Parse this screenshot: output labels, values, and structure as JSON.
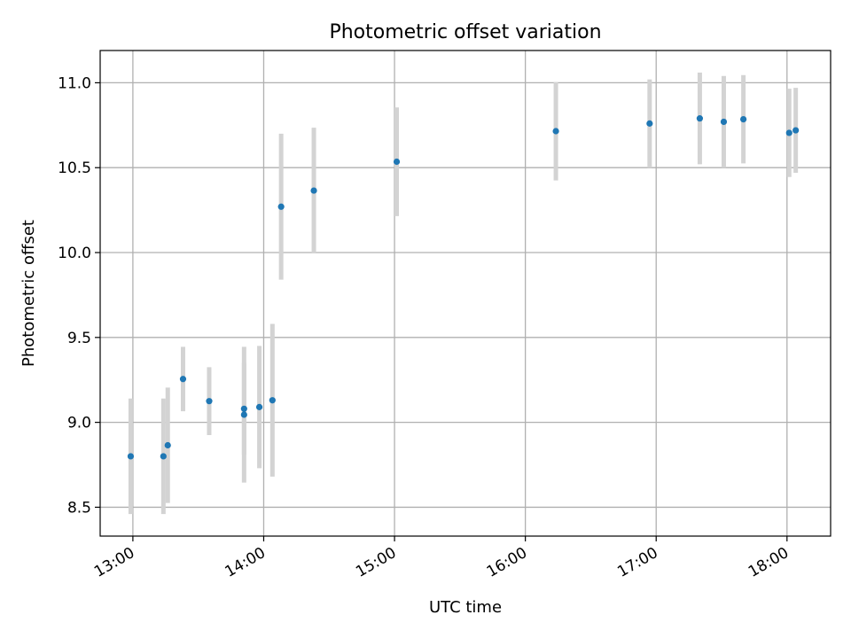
{
  "chart_data": {
    "type": "scatter",
    "title": "Photometric offset variation",
    "xlabel": "UTC time",
    "ylabel": "Photometric offset",
    "x_unit": "UTC time (HH:MM)",
    "xlim": [
      "12:45",
      "18:20"
    ],
    "ylim": [
      8.33,
      11.19
    ],
    "x_ticks": [
      "13:00",
      "14:00",
      "15:00",
      "16:00",
      "17:00",
      "18:00"
    ],
    "y_ticks": [
      8.5,
      9.0,
      9.5,
      10.0,
      10.5,
      11.0
    ],
    "y_tick_labels": [
      "8.5",
      "9.0",
      "9.5",
      "10.0",
      "10.5",
      "11.0"
    ],
    "grid": true,
    "legend": null,
    "colors": {
      "marker": "#1f77b4",
      "errorbar": "#d3d3d3",
      "grid": "#b0b0b0"
    },
    "points": [
      {
        "x": "12:59",
        "y": 8.8,
        "err": 0.34
      },
      {
        "x": "13:14",
        "y": 8.8,
        "err": 0.34
      },
      {
        "x": "13:16",
        "y": 8.865,
        "err": 0.34
      },
      {
        "x": "13:23",
        "y": 9.255,
        "err": 0.19
      },
      {
        "x": "13:35",
        "y": 9.125,
        "err": 0.2
      },
      {
        "x": "13:51",
        "y": 9.08,
        "err": 0.27
      },
      {
        "x": "13:51",
        "y": 9.045,
        "err": 0.4
      },
      {
        "x": "13:58",
        "y": 9.09,
        "err": 0.36
      },
      {
        "x": "14:04",
        "y": 9.13,
        "err": 0.45
      },
      {
        "x": "14:08",
        "y": 10.27,
        "err": 0.43
      },
      {
        "x": "14:23",
        "y": 10.365,
        "err": 0.37
      },
      {
        "x": "15:01",
        "y": 10.535,
        "err": 0.32
      },
      {
        "x": "16:14",
        "y": 10.715,
        "err": 0.29
      },
      {
        "x": "16:57",
        "y": 10.76,
        "err": 0.26
      },
      {
        "x": "17:20",
        "y": 10.79,
        "err": 0.27
      },
      {
        "x": "17:31",
        "y": 10.77,
        "err": 0.27
      },
      {
        "x": "17:40",
        "y": 10.785,
        "err": 0.26
      },
      {
        "x": "18:01",
        "y": 10.705,
        "err": 0.26
      },
      {
        "x": "18:04",
        "y": 10.72,
        "err": 0.25
      }
    ]
  }
}
